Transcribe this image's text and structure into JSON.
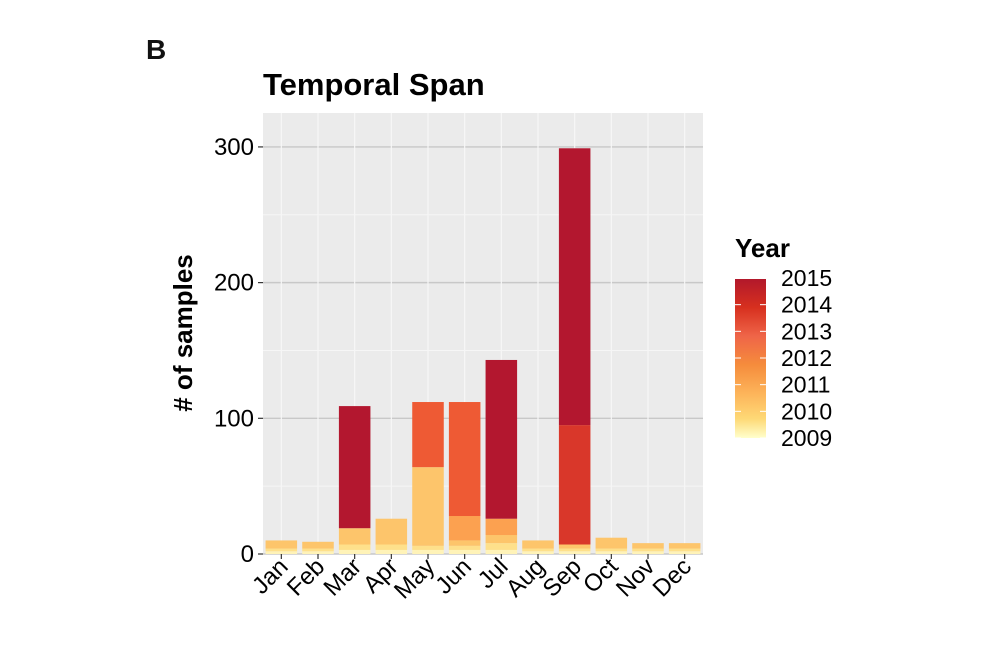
{
  "panel_label": "B",
  "chart_data": {
    "type": "bar",
    "stacked": true,
    "title": "Temporal Span",
    "xlabel": "",
    "ylabel": "# of samples",
    "ylim": [
      0,
      325
    ],
    "yticks": [
      0,
      100,
      200,
      300
    ],
    "grid": true,
    "categories": [
      "Jan",
      "Feb",
      "Mar",
      "Apr",
      "May",
      "Jun",
      "Jul",
      "Aug",
      "Sep",
      "Oct",
      "Nov",
      "Dec"
    ],
    "legend": {
      "title": "Year",
      "position": "right",
      "type": "continuous",
      "labels": [
        "2015",
        "2014",
        "2013",
        "2012",
        "2011",
        "2010",
        "2009"
      ],
      "colors": [
        "#b2182b",
        "#d7301f",
        "#ef6548",
        "#f58c3c",
        "#fdb45a",
        "#fed976",
        "#ffffcc"
      ]
    },
    "series": [
      {
        "name": "2009",
        "color": "#fff3b8",
        "values": [
          2,
          2,
          3,
          3,
          3,
          3,
          3,
          2,
          2,
          2,
          2,
          2
        ]
      },
      {
        "name": "2010",
        "color": "#fee08b",
        "values": [
          2,
          2,
          4,
          4,
          3,
          3,
          5,
          2,
          2,
          2,
          2,
          2
        ]
      },
      {
        "name": "2011",
        "color": "#fdc56b",
        "values": [
          6,
          5,
          12,
          19,
          58,
          4,
          6,
          6,
          3,
          8,
          4,
          4
        ]
      },
      {
        "name": "2012",
        "color": "#fca150",
        "values": [
          0,
          0,
          0,
          0,
          0,
          18,
          12,
          0,
          0,
          0,
          0,
          0
        ]
      },
      {
        "name": "2013",
        "color": "#ee5a34",
        "values": [
          0,
          0,
          0,
          0,
          48,
          84,
          0,
          0,
          0,
          0,
          0,
          0
        ]
      },
      {
        "name": "2014",
        "color": "#d9372a",
        "values": [
          0,
          0,
          0,
          0,
          0,
          0,
          0,
          0,
          88,
          0,
          0,
          0
        ]
      },
      {
        "name": "2015",
        "color": "#b3172f",
        "values": [
          0,
          0,
          90,
          0,
          0,
          0,
          117,
          0,
          204,
          0,
          0,
          0
        ]
      }
    ]
  }
}
